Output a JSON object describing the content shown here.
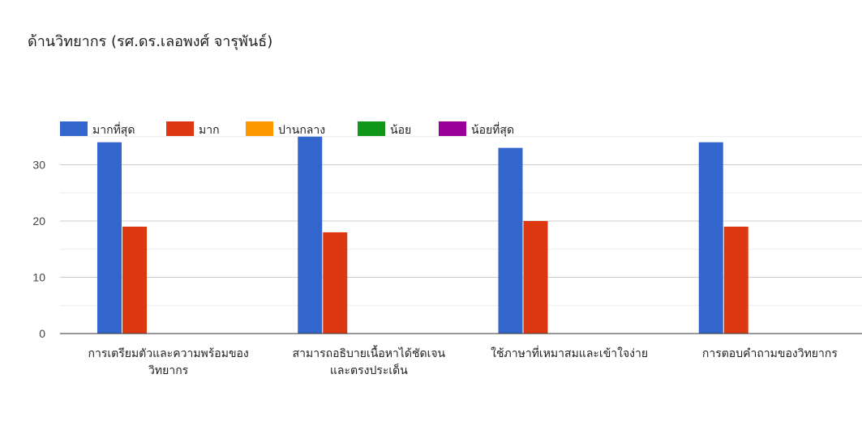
{
  "chart_data": {
    "type": "bar",
    "title": "ด้านวิทยากร (รศ.ดร.เลอพงศ์ จารุพันธ์)",
    "categories": [
      [
        "การเตรียมตัวและความพร้อมของ",
        "วิทยากร"
      ],
      [
        "สามารถอธิบายเนื้อหาได้ชัดเจน",
        "และตรงประเด็น"
      ],
      [
        "ใช้ภาษาที่เหมาสมและเข้าใจง่าย"
      ],
      [
        "การตอบคำถามของวิทยากร"
      ]
    ],
    "series": [
      {
        "name": "มากที่สุด",
        "color": "#3366cc",
        "values": [
          34,
          35,
          33,
          34
        ]
      },
      {
        "name": "มาก",
        "color": "#dc3912",
        "values": [
          19,
          18,
          20,
          19
        ]
      },
      {
        "name": "ปานกลาง",
        "color": "#ff9900",
        "values": [
          0,
          0,
          0,
          0
        ]
      },
      {
        "name": "น้อย",
        "color": "#109618",
        "values": [
          0,
          0,
          0,
          0
        ]
      },
      {
        "name": "น้อยที่สุด",
        "color": "#990099",
        "values": [
          0,
          0,
          0,
          0
        ]
      }
    ],
    "ylim": [
      0,
      35
    ],
    "yticks": [
      0,
      10,
      20,
      30
    ],
    "grid": true,
    "legend_position": "top-left",
    "xlabel": "",
    "ylabel": ""
  }
}
